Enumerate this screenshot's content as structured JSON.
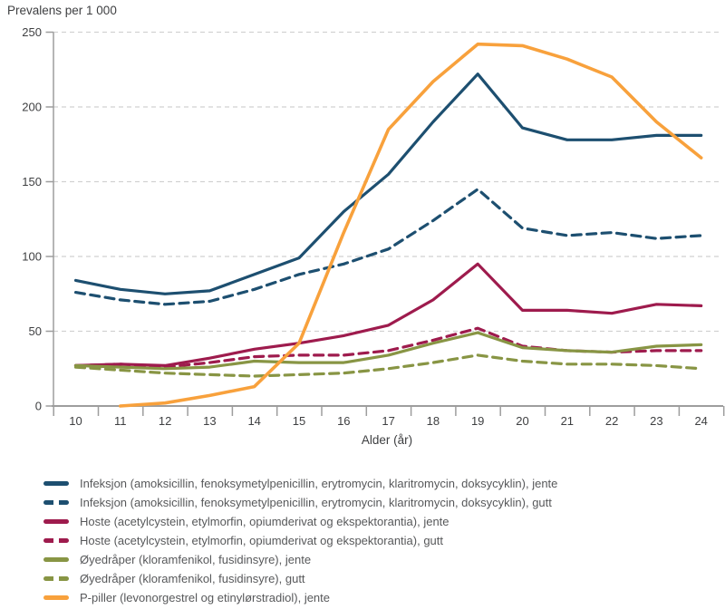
{
  "chart_data": {
    "type": "line",
    "title": "",
    "ylabel": "Prevalens per 1 000",
    "xlabel": "Alder (år)",
    "ylim": [
      0,
      250
    ],
    "yticks": [
      0,
      50,
      100,
      150,
      200,
      250
    ],
    "x": [
      10,
      11,
      12,
      13,
      14,
      15,
      16,
      17,
      18,
      19,
      20,
      21,
      22,
      23,
      24
    ],
    "grid": "horizontal-dashed",
    "legend_position": "bottom-left",
    "series": [
      {
        "name": "Infeksjon (amoksicillin, fenoksymetylpenicillin, erytromycin, klaritromycin, doksycyklin), jente",
        "color": "#1d4f70",
        "line_style": "solid",
        "values": [
          84,
          78,
          75,
          77,
          88,
          99,
          130,
          155,
          190,
          222,
          186,
          178,
          178,
          181,
          181
        ]
      },
      {
        "name": "Infeksjon (amoksicillin, fenoksymetylpenicillin, erytromycin, klaritromycin, doksycyklin), gutt",
        "color": "#1d4f70",
        "line_style": "dashed",
        "values": [
          76,
          71,
          68,
          70,
          78,
          88,
          95,
          105,
          124,
          145,
          119,
          114,
          116,
          112,
          114
        ]
      },
      {
        "name": "Hoste (acetylcystein, etylmorfin, opiumderivat og ekspektorantia), jente",
        "color": "#9e1b4d",
        "line_style": "solid",
        "values": [
          27,
          28,
          27,
          32,
          38,
          42,
          47,
          54,
          71,
          95,
          64,
          64,
          62,
          68,
          67
        ]
      },
      {
        "name": "Hoste (acetylcystein, etylmorfin, opiumderivat og ekspektorantia), gutt",
        "color": "#9e1b4d",
        "line_style": "dashed",
        "values": [
          27,
          28,
          26,
          29,
          33,
          34,
          34,
          37,
          44,
          52,
          40,
          37,
          36,
          37,
          37
        ]
      },
      {
        "name": "Øyedråper (kloramfenikol, fusidinsyre), jente",
        "color": "#889544",
        "line_style": "solid",
        "values": [
          27,
          26,
          25,
          26,
          30,
          29,
          29,
          34,
          42,
          49,
          39,
          37,
          36,
          40,
          41
        ]
      },
      {
        "name": "Øyedråper (kloramfenikol, fusidinsyre), gutt",
        "color": "#889544",
        "line_style": "dashed",
        "values": [
          26,
          24,
          22,
          21,
          20,
          21,
          22,
          25,
          29,
          34,
          30,
          28,
          28,
          27,
          25
        ]
      },
      {
        "name": "P-piller (levonorgestrel og etinylørstradiol), jente",
        "color": "#f8a13c",
        "line_style": "solid",
        "width": 3.6,
        "values": [
          null,
          0,
          2,
          7,
          13,
          42,
          116,
          185,
          217,
          242,
          241,
          232,
          220,
          190,
          166
        ]
      }
    ]
  }
}
